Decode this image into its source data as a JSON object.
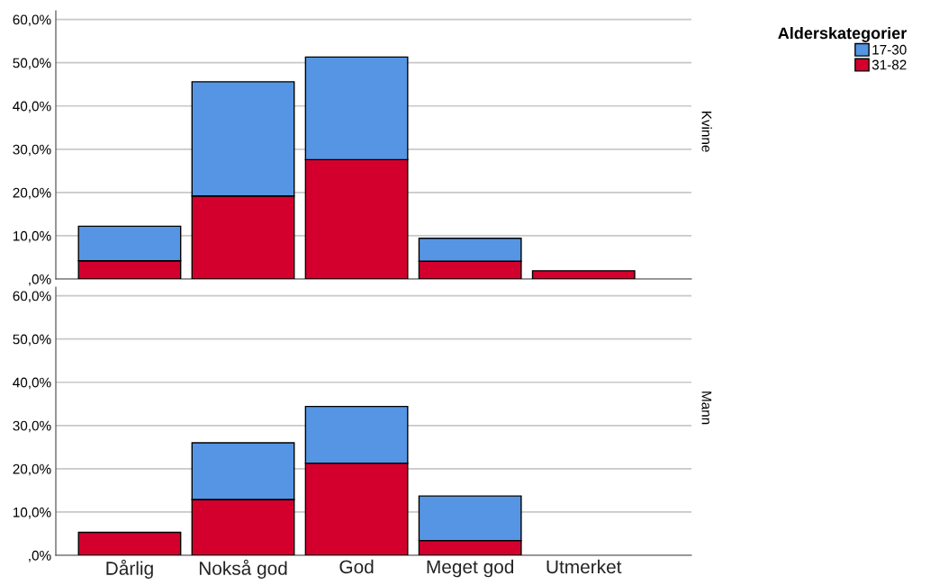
{
  "chart_data": [
    {
      "type": "bar",
      "stacked": true,
      "categories": [
        null,
        null,
        null,
        null,
        null
      ],
      "series": [
        {
          "name": "31-82",
          "color": "#d3002e",
          "values": [
            4.2,
            19.2,
            27.6,
            4.1,
            1.9
          ]
        },
        {
          "name": "17-30",
          "color": "#5595e3",
          "values": [
            8.0,
            26.4,
            23.7,
            5.3,
            null
          ]
        }
      ],
      "ylim": [
        0,
        62
      ],
      "yticks": [
        {
          "value": 0,
          "label": ",0%"
        },
        {
          "value": 10,
          "label": "10,0%"
        },
        {
          "value": 20,
          "label": "20,0%"
        },
        {
          "value": 30,
          "label": "30,0%"
        },
        {
          "value": 40,
          "label": "40,0%"
        },
        {
          "value": 50,
          "label": "50,0%"
        },
        {
          "value": 60,
          "label": "60,0%"
        }
      ],
      "grid": "y",
      "legend": "top right",
      "legend_title": "Alderskategorier",
      "tick_labels": "y",
      "annotations": [
        "Kvinne"
      ]
    },
    {
      "type": "bar",
      "stacked": true,
      "categories": [
        "Dårlig",
        "Nokså god",
        "God",
        "Meget god",
        "Utmerket"
      ],
      "series": [
        {
          "color": "#d3002e",
          "values": [
            5.3,
            12.9,
            21.3,
            3.4,
            null
          ]
        },
        {
          "color": "#5595e3",
          "values": [
            null,
            13.1,
            13.1,
            10.3,
            null
          ]
        }
      ],
      "ylim": [
        0,
        62
      ],
      "yticks": [
        {
          "value": 0,
          "label": ",0%"
        },
        {
          "value": 10,
          "label": "10,0%"
        },
        {
          "value": 20,
          "label": "20,0%"
        },
        {
          "value": 30,
          "label": "30,0%"
        },
        {
          "value": 40,
          "label": "40,0%"
        },
        {
          "value": 50,
          "label": "50,0%"
        },
        {
          "value": 60,
          "label": "60,0%"
        }
      ],
      "grid": "y",
      "annotations": [
        "Mann"
      ]
    }
  ]
}
